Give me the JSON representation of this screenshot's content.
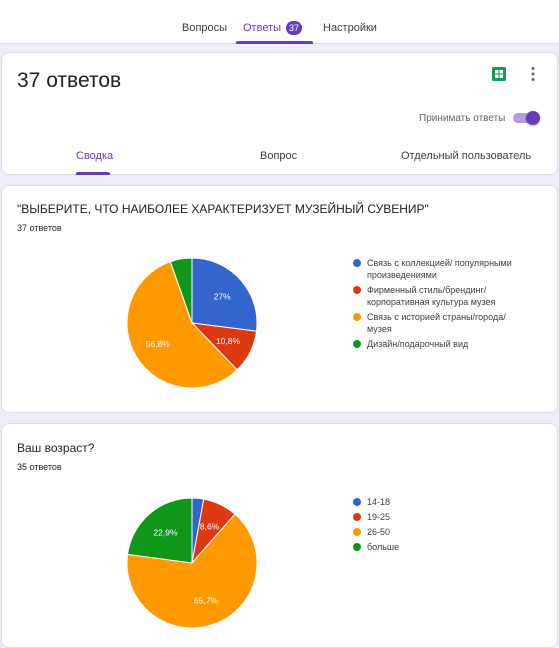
{
  "nav": {
    "tabs": [
      {
        "label": "Вопросы"
      },
      {
        "label": "Ответы",
        "badge": "37"
      },
      {
        "label": "Настройки"
      }
    ]
  },
  "header": {
    "responses_count": "37 ответов",
    "accept_label": "Принимать ответы",
    "accept_on": true,
    "subtabs": [
      "Сводка",
      "Вопрос",
      "Отдельный пользователь"
    ]
  },
  "questions": [
    {
      "title": "\"ВЫБЕРИТЕ, ЧТО НАИБОЛЕЕ ХАРАКТЕРИЗУЕТ МУЗЕЙНЫЙ СУВЕНИР\"",
      "count": "37 ответов"
    },
    {
      "title": "Ваш возраст?",
      "count": "35 ответов"
    }
  ],
  "colors": {
    "accent": "#673ab7",
    "blue": "#3366cc",
    "red": "#dc3912",
    "orange": "#ff9900",
    "green": "#109618"
  },
  "chart_data": [
    {
      "type": "pie",
      "categories": [
        "Связь с коллекцией/ популярными произведениями",
        "Фирменный стиль/брендинг/ корпоративная культура музея",
        "Связь с историей страны/города/ музея",
        "Дизайн/подарочный вид"
      ],
      "values": [
        27,
        10.8,
        56.8,
        5.4
      ],
      "labels": [
        "27%",
        "10,8%",
        "56,8%",
        ""
      ],
      "colors": [
        "#3366cc",
        "#dc3912",
        "#ff9900",
        "#109618"
      ],
      "legend_position": "right"
    },
    {
      "type": "pie",
      "categories": [
        "14-18",
        "19-25",
        "26-50",
        "больше"
      ],
      "values": [
        2.9,
        8.6,
        65.7,
        22.9
      ],
      "labels": [
        "",
        "8,6%",
        "65,7%",
        "22,9%"
      ],
      "colors": [
        "#3366cc",
        "#dc3912",
        "#ff9900",
        "#109618"
      ],
      "legend_position": "right"
    }
  ]
}
